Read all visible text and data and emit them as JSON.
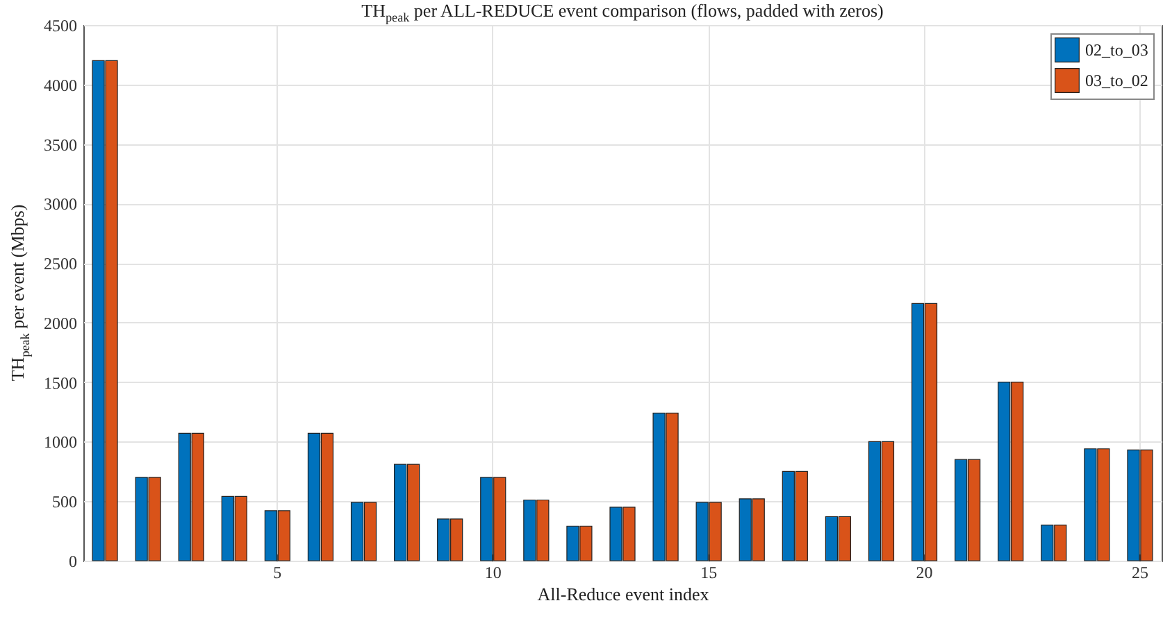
{
  "chart_data": {
    "type": "bar",
    "title": "TH$_{peak}$ per ALL-REDUCE event comparison (flows, padded with zeros)",
    "xlabel": "All-Reduce event index",
    "ylabel": "TH$_{peak}$ per event (Mbps)",
    "categories": [
      null,
      null,
      null,
      null,
      "5",
      null,
      null,
      null,
      null,
      "10",
      null,
      null,
      null,
      null,
      "15",
      null,
      null,
      null,
      null,
      "20",
      null,
      null,
      null,
      null,
      "25"
    ],
    "series": [
      {
        "name": "02_to_03",
        "color": "#0072bd",
        "values": [
          4200,
          700,
          1070,
          540,
          420,
          1070,
          490,
          810,
          350,
          700,
          510,
          290,
          450,
          1240,
          490,
          520,
          750,
          370,
          1000,
          2160,
          850,
          1500,
          300,
          940,
          930
        ]
      },
      {
        "name": "03_to_02",
        "color": "#d95319",
        "values": [
          4200,
          700,
          1070,
          540,
          420,
          1070,
          490,
          810,
          350,
          700,
          510,
          290,
          450,
          1240,
          490,
          520,
          750,
          370,
          1000,
          2160,
          850,
          1500,
          300,
          940,
          930
        ]
      }
    ],
    "ylim": [
      0,
      4500
    ],
    "yticks": [
      0,
      500,
      1000,
      1500,
      2000,
      2500,
      3000,
      3500,
      4000,
      4500
    ],
    "grid": true,
    "legend": "top right"
  }
}
